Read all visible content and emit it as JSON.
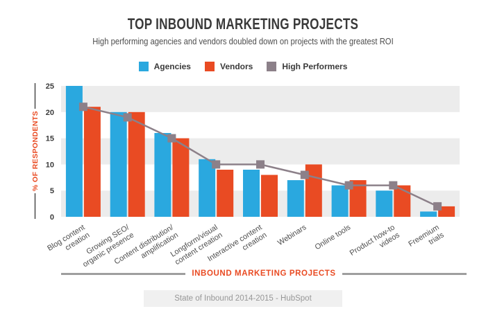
{
  "header": {
    "title": "TOP INBOUND MARKETING PROJECTS",
    "subtitle": "High performing agencies and vendors doubled down on projects with the greatest ROI"
  },
  "legend": {
    "items": [
      {
        "label": "Agencies",
        "color": "#2AA8DF"
      },
      {
        "label": "Vendors",
        "color": "#E94B23"
      },
      {
        "label": "High Performers",
        "color": "#8C8089"
      }
    ]
  },
  "chart_data": {
    "type": "bar",
    "title": "TOP INBOUND MARKETING PROJECTS",
    "subtitle": "High performing agencies and vendors doubled down on projects with the greatest ROI",
    "categories": [
      "Blog content creation",
      "Growing SEO/organic presence",
      "Content distribution/amplification",
      "Longform/visual content creation",
      "Interactive content creation",
      "Webinars",
      "Online tools",
      "Product how-to videos",
      "Freemium trials"
    ],
    "category_lines": [
      [
        "Blog content",
        "creation"
      ],
      [
        "Growing SEO/",
        "organic presence"
      ],
      [
        "Content distribution/",
        "amplification"
      ],
      [
        "Longform/visual",
        "content creation"
      ],
      [
        "Interactive content",
        "creation"
      ],
      [
        "Webinars"
      ],
      [
        "Online tools"
      ],
      [
        "Product how-to",
        "videos"
      ],
      [
        "Freemium",
        "trials"
      ]
    ],
    "series": [
      {
        "name": "Agencies",
        "type": "bar",
        "color": "#2AA8DF",
        "values": [
          25,
          20,
          16,
          11,
          9,
          7,
          6,
          5,
          1
        ]
      },
      {
        "name": "Vendors",
        "type": "bar",
        "color": "#E94B23",
        "values": [
          21,
          20,
          15,
          9,
          8,
          10,
          7,
          6,
          2
        ]
      },
      {
        "name": "High Performers",
        "type": "line",
        "color": "#8C8089",
        "values": [
          21,
          19,
          15,
          10,
          10,
          8,
          6,
          6,
          2
        ]
      }
    ],
    "xlabel": "INBOUND MARKETING PROJECTS",
    "ylabel": "% OF RESPONDENTS",
    "ylim": [
      0,
      25
    ],
    "ytick_step": 5,
    "yticks": [
      0,
      5,
      10,
      15,
      20,
      25
    ],
    "grid": "alternating horizontal gray bands (0-5, 10-15, 20-25)",
    "legend_position": "top",
    "band_color": "#ECECEC",
    "axis_text_color": "#3A3A3A",
    "category_text_color": "#4D4D4D",
    "accent_color": "#E94B23"
  },
  "footer": {
    "source": "State of Inbound 2014-2015 - HubSpot"
  }
}
